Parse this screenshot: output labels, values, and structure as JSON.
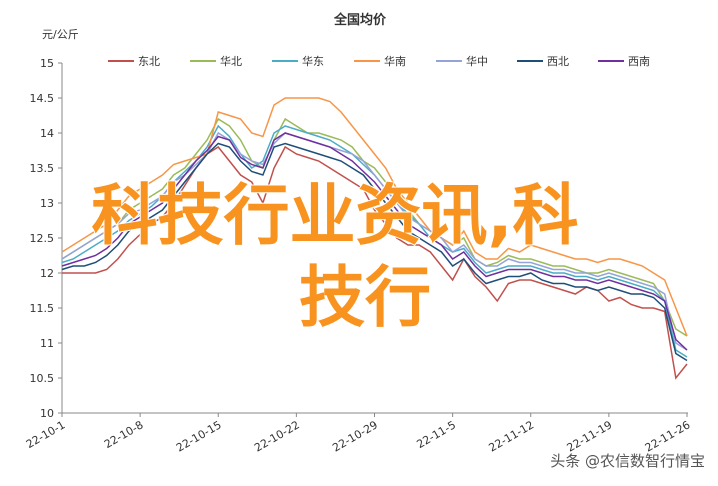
{
  "chart_data": {
    "type": "line",
    "title": "全国均价",
    "y_label": "元/公斤",
    "ylim": [
      10,
      15
    ],
    "yticks": [
      10,
      10.5,
      11,
      11.5,
      12,
      12.5,
      13,
      13.5,
      14,
      14.5,
      15
    ],
    "grid": false,
    "legend": "top",
    "categories": [
      "22-10-1",
      null,
      null,
      null,
      null,
      null,
      null,
      "22-10-8",
      null,
      null,
      null,
      null,
      null,
      null,
      "22-10-15",
      null,
      null,
      null,
      null,
      null,
      null,
      "22-10-22",
      null,
      null,
      null,
      null,
      null,
      null,
      "22-10-29",
      null,
      null,
      null,
      null,
      null,
      null,
      "22-11-5",
      null,
      null,
      null,
      null,
      null,
      null,
      "22-11-12",
      null,
      null,
      null,
      null,
      null,
      null,
      "22-11-19",
      null,
      null,
      null,
      null,
      null,
      null,
      "22-11-26"
    ],
    "series": [
      {
        "name": "东北",
        "color": "#c0504d",
        "values": [
          12.0,
          12.0,
          12.0,
          12.0,
          12.05,
          12.2,
          12.4,
          12.55,
          12.7,
          12.8,
          13.0,
          13.25,
          13.5,
          13.7,
          13.8,
          13.6,
          13.4,
          13.3,
          13.0,
          13.5,
          13.8,
          13.7,
          13.65,
          13.6,
          13.5,
          13.4,
          13.3,
          13.2,
          12.9,
          12.7,
          12.5,
          12.4,
          12.4,
          12.3,
          12.1,
          11.9,
          12.2,
          11.95,
          11.8,
          11.6,
          11.85,
          11.9,
          11.9,
          11.85,
          11.8,
          11.75,
          11.7,
          11.8,
          11.75,
          11.6,
          11.65,
          11.55,
          11.5,
          11.5,
          11.45,
          10.5,
          10.7
        ]
      },
      {
        "name": "华北",
        "color": "#9bbb59",
        "values": [
          12.2,
          12.3,
          12.4,
          12.5,
          12.6,
          12.7,
          12.9,
          13.0,
          13.1,
          13.2,
          13.4,
          13.5,
          13.7,
          13.9,
          14.2,
          14.1,
          13.9,
          13.6,
          13.5,
          13.9,
          14.2,
          14.1,
          14.0,
          14.0,
          13.95,
          13.9,
          13.8,
          13.6,
          13.5,
          13.3,
          13.1,
          12.9,
          12.7,
          12.6,
          12.5,
          12.4,
          12.5,
          12.2,
          12.1,
          12.15,
          12.25,
          12.2,
          12.2,
          12.15,
          12.1,
          12.1,
          12.05,
          12.0,
          12.0,
          12.05,
          12.0,
          11.95,
          11.9,
          11.85,
          11.6,
          11.2,
          11.1
        ]
      },
      {
        "name": "华东",
        "color": "#4bacc6",
        "values": [
          12.15,
          12.2,
          12.3,
          12.4,
          12.5,
          12.6,
          12.75,
          12.85,
          12.95,
          13.1,
          13.3,
          13.45,
          13.6,
          13.8,
          14.1,
          13.95,
          13.7,
          13.5,
          13.6,
          14.0,
          14.1,
          14.05,
          14.0,
          13.95,
          13.9,
          13.8,
          13.7,
          13.55,
          13.4,
          13.2,
          13.0,
          12.85,
          12.7,
          12.5,
          12.4,
          12.3,
          12.35,
          12.15,
          12.0,
          12.05,
          12.1,
          12.1,
          12.1,
          12.05,
          12.0,
          12.0,
          11.95,
          11.95,
          11.9,
          11.95,
          11.9,
          11.85,
          11.8,
          11.75,
          11.6,
          10.9,
          10.8
        ]
      },
      {
        "name": "华南",
        "color": "#f79646",
        "values": [
          12.3,
          12.4,
          12.5,
          12.6,
          12.7,
          12.9,
          13.1,
          13.2,
          13.3,
          13.4,
          13.55,
          13.6,
          13.65,
          13.7,
          14.3,
          14.25,
          14.2,
          14.0,
          13.95,
          14.4,
          14.5,
          14.5,
          14.5,
          14.5,
          14.45,
          14.3,
          14.1,
          13.9,
          13.7,
          13.5,
          13.2,
          13.0,
          12.8,
          12.6,
          12.5,
          12.4,
          12.6,
          12.3,
          12.2,
          12.2,
          12.35,
          12.3,
          12.4,
          12.35,
          12.3,
          12.25,
          12.2,
          12.2,
          12.15,
          12.2,
          12.2,
          12.15,
          12.1,
          12.0,
          11.9,
          11.5,
          11.1
        ]
      },
      {
        "name": "华中",
        "color": "#95a3d8",
        "values": [
          12.2,
          12.3,
          12.4,
          12.5,
          12.6,
          12.7,
          12.85,
          12.9,
          13.0,
          13.1,
          13.3,
          13.4,
          13.55,
          13.7,
          14.0,
          13.9,
          13.7,
          13.6,
          13.55,
          13.85,
          14.0,
          13.95,
          13.9,
          13.85,
          13.8,
          13.75,
          13.7,
          13.6,
          13.4,
          13.2,
          13.0,
          12.8,
          12.7,
          12.6,
          12.5,
          12.3,
          12.4,
          12.2,
          12.1,
          12.1,
          12.2,
          12.15,
          12.15,
          12.1,
          12.05,
          12.05,
          12.0,
          12.0,
          11.95,
          12.0,
          11.95,
          11.9,
          11.85,
          11.8,
          11.7,
          11.0,
          10.9
        ]
      },
      {
        "name": "西北",
        "color": "#1f4e79",
        "values": [
          12.05,
          12.1,
          12.1,
          12.15,
          12.25,
          12.4,
          12.6,
          12.7,
          12.8,
          12.9,
          13.1,
          13.3,
          13.5,
          13.7,
          13.85,
          13.8,
          13.6,
          13.45,
          13.4,
          13.8,
          13.85,
          13.8,
          13.75,
          13.7,
          13.65,
          13.6,
          13.5,
          13.4,
          13.2,
          13.0,
          12.8,
          12.6,
          12.5,
          12.4,
          12.3,
          12.1,
          12.2,
          12.0,
          11.85,
          11.9,
          11.95,
          11.95,
          12.0,
          11.9,
          11.85,
          11.85,
          11.8,
          11.8,
          11.75,
          11.8,
          11.75,
          11.7,
          11.7,
          11.65,
          11.5,
          10.85,
          10.75
        ]
      },
      {
        "name": "西南",
        "color": "#7030a0",
        "values": [
          12.1,
          12.15,
          12.2,
          12.25,
          12.35,
          12.5,
          12.7,
          12.8,
          12.9,
          13.0,
          13.2,
          13.4,
          13.6,
          13.75,
          13.95,
          13.9,
          13.65,
          13.55,
          13.5,
          13.9,
          14.0,
          13.95,
          13.9,
          13.85,
          13.8,
          13.7,
          13.6,
          13.45,
          13.3,
          13.1,
          12.9,
          12.7,
          12.6,
          12.5,
          12.4,
          12.2,
          12.3,
          12.1,
          11.95,
          12.0,
          12.05,
          12.05,
          12.05,
          12.0,
          11.95,
          11.95,
          11.9,
          11.9,
          11.85,
          11.9,
          11.85,
          11.8,
          11.75,
          11.7,
          11.6,
          11.05,
          10.9
        ]
      }
    ]
  },
  "overlay": {
    "lines": [
      "科技行业资讯,科",
      "技行"
    ]
  },
  "watermark": "头条 @农信数智行情宝"
}
